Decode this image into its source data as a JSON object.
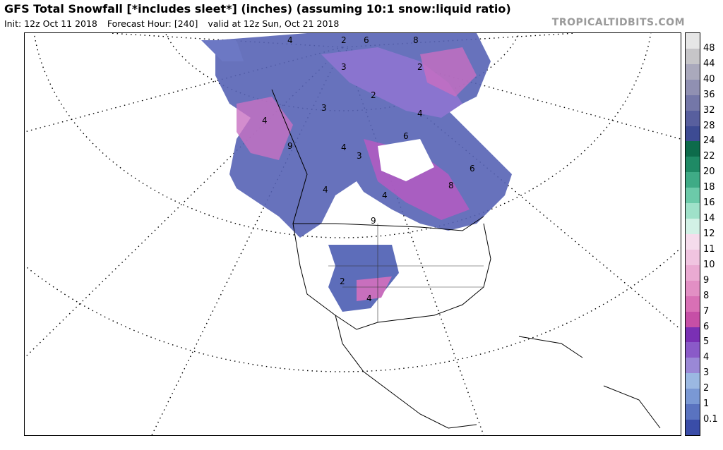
{
  "header": {
    "title": "GFS Total Snowfall [*includes sleet*] (inches) (assuming 10:1 snow:liquid ratio)",
    "init": "Init: 12z Oct 11 2018",
    "forecast_hour": "Forecast Hour: [240]",
    "valid": "valid at 12z Sun, Oct 21 2018",
    "brand": "TROPICALTIDBITS.COM"
  },
  "colorbar": {
    "labels": [
      "0.1",
      "1",
      "2",
      "3",
      "4",
      "5",
      "6",
      "7",
      "8",
      "9",
      "10",
      "11",
      "12",
      "14",
      "16",
      "18",
      "20",
      "22",
      "24",
      "28",
      "32",
      "36",
      "40",
      "44",
      "48"
    ],
    "colors": [
      "#3a4da8",
      "#5a73c0",
      "#7a98d4",
      "#9bb8e2",
      "#9a88d6",
      "#8a5ac8",
      "#7a30b4",
      "#c64fa6",
      "#d870b5",
      "#e28fc4",
      "#eaaad2",
      "#f0c4e0",
      "#f5dcec",
      "#d2f1e6",
      "#9fe1c9",
      "#6ccaa9",
      "#3fab86",
      "#1f8a65",
      "#0d6b4b",
      "#3d4b93",
      "#585f9e",
      "#7477a8",
      "#9090b2",
      "#aaa9bc",
      "#c6c5c8",
      "#e6e6e6"
    ]
  },
  "map_labels": [
    "4",
    "2",
    "6",
    "3",
    "2",
    "8",
    "2",
    "3",
    "9",
    "6",
    "4",
    "4",
    "3",
    "4",
    "6",
    "2",
    "4",
    "4",
    "4",
    "8",
    "9"
  ]
}
